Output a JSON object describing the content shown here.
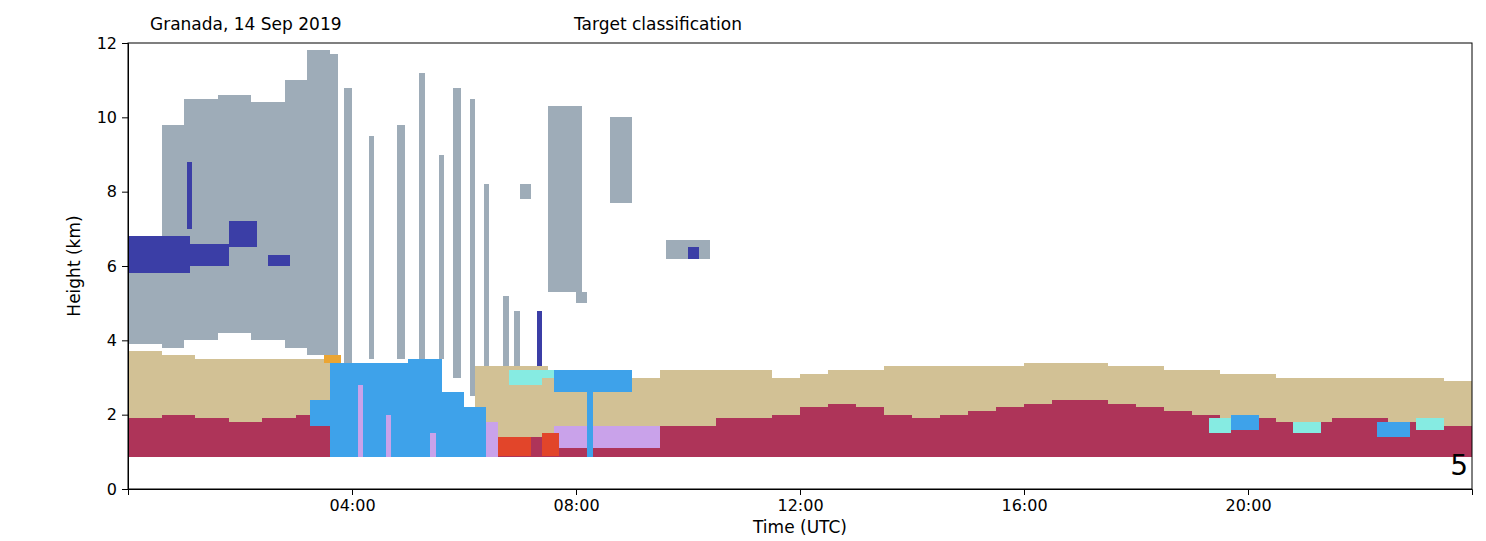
{
  "chart_data": {
    "type": "heatmap",
    "title": "Target classification",
    "subtitle": "Granada, 14 Sep 2019",
    "x_label": "Time (UTC)",
    "y_label": "Height (km)",
    "annotations": [
      "5"
    ],
    "xlim": [
      0,
      24
    ],
    "ylim": [
      0,
      12
    ],
    "xticks": [
      {
        "value": 4,
        "label": "04:00"
      },
      {
        "value": 8,
        "label": "08:00"
      },
      {
        "value": 12,
        "label": "12:00"
      },
      {
        "value": 16,
        "label": "16:00"
      },
      {
        "value": 20,
        "label": "20:00"
      }
    ],
    "yticks": [
      0,
      2,
      4,
      6,
      8,
      10,
      12
    ],
    "colors": [
      "#9eacb8",
      "#3b3ea6",
      "#d2c195",
      "#ae3459",
      "#3ea2ea",
      "#c9a2ea",
      "#86ebe2",
      "#eba532",
      "#e2452a"
    ],
    "cells": [
      [
        0,
        0.6,
        3.9,
        6.8,
        0
      ],
      [
        0.6,
        1.0,
        3.8,
        9.8,
        0
      ],
      [
        1.0,
        1.6,
        4.0,
        10.5,
        0
      ],
      [
        1.6,
        2.2,
        4.2,
        10.6,
        0
      ],
      [
        2.2,
        2.8,
        4.0,
        10.4,
        0
      ],
      [
        2.8,
        3.2,
        3.8,
        11.0,
        0
      ],
      [
        3.2,
        3.6,
        3.6,
        11.8,
        0
      ],
      [
        0,
        1.1,
        5.8,
        6.8,
        1
      ],
      [
        1.1,
        1.8,
        6.0,
        6.6,
        1
      ],
      [
        1.8,
        2.3,
        6.5,
        7.2,
        1
      ],
      [
        2.5,
        2.9,
        6.0,
        6.3,
        1
      ],
      [
        1.05,
        1.15,
        7.0,
        8.8,
        1
      ],
      [
        0,
        0.6,
        0.85,
        3.7,
        2
      ],
      [
        0.6,
        1.2,
        0.85,
        3.6,
        2
      ],
      [
        1.2,
        1.8,
        0.85,
        3.5,
        2
      ],
      [
        1.8,
        2.4,
        0.85,
        3.5,
        2
      ],
      [
        2.4,
        3.0,
        0.85,
        3.5,
        2
      ],
      [
        3.0,
        3.6,
        0.85,
        3.5,
        2
      ],
      [
        0,
        0.6,
        0.85,
        1.9,
        3
      ],
      [
        0.6,
        1.2,
        0.85,
        2.0,
        3
      ],
      [
        1.2,
        1.8,
        0.85,
        1.9,
        3
      ],
      [
        1.8,
        2.4,
        0.85,
        1.8,
        3
      ],
      [
        2.4,
        3.0,
        0.85,
        1.9,
        3
      ],
      [
        3.0,
        3.6,
        0.85,
        2.0,
        3
      ],
      [
        3.6,
        3.75,
        3.4,
        11.7,
        0
      ],
      [
        3.85,
        4.0,
        3.4,
        10.8,
        0
      ],
      [
        4.3,
        4.4,
        3.5,
        9.5,
        0
      ],
      [
        4.8,
        4.95,
        3.5,
        9.8,
        0
      ],
      [
        5.2,
        5.3,
        3.5,
        11.2,
        0
      ],
      [
        5.55,
        5.65,
        3.5,
        9.0,
        0
      ],
      [
        5.8,
        5.95,
        3.0,
        10.8,
        0
      ],
      [
        6.1,
        6.2,
        2.5,
        10.5,
        0
      ],
      [
        6.35,
        6.45,
        2.8,
        8.2,
        0
      ],
      [
        6.7,
        6.8,
        2.0,
        5.2,
        0
      ],
      [
        6.9,
        7.0,
        2.4,
        4.8,
        0
      ],
      [
        7.3,
        7.4,
        3.2,
        4.8,
        1
      ],
      [
        3.25,
        3.6,
        1.7,
        2.4,
        4
      ],
      [
        3.6,
        5.0,
        0.85,
        3.4,
        4
      ],
      [
        5.0,
        5.6,
        0.85,
        3.5,
        4
      ],
      [
        5.6,
        6.0,
        0.85,
        2.6,
        4
      ],
      [
        4.1,
        4.2,
        0.85,
        2.8,
        5
      ],
      [
        4.6,
        4.7,
        0.85,
        2.0,
        5
      ],
      [
        5.4,
        5.5,
        0.85,
        1.5,
        5
      ],
      [
        3.5,
        3.8,
        3.4,
        3.6,
        7
      ],
      [
        6.2,
        7.5,
        1.4,
        3.3,
        2
      ],
      [
        6.0,
        7.5,
        0.85,
        1.4,
        3
      ],
      [
        6.6,
        7.2,
        0.9,
        1.4,
        8
      ],
      [
        6.0,
        6.4,
        0.85,
        2.2,
        4
      ],
      [
        6.4,
        6.6,
        0.85,
        1.8,
        5
      ],
      [
        6.8,
        7.6,
        2.8,
        3.2,
        6
      ],
      [
        7.4,
        9.6,
        1.4,
        3.0,
        2
      ],
      [
        7.6,
        9.0,
        2.6,
        3.2,
        4
      ],
      [
        7.5,
        9.5,
        0.85,
        1.2,
        3
      ],
      [
        7.6,
        9.6,
        1.1,
        1.7,
        5
      ],
      [
        7.4,
        7.7,
        0.9,
        1.5,
        8
      ],
      [
        8.2,
        8.3,
        0.85,
        2.8,
        4
      ],
      [
        7.5,
        8.1,
        5.3,
        10.3,
        0
      ],
      [
        7.0,
        7.2,
        7.8,
        8.2,
        0
      ],
      [
        8.0,
        8.2,
        5.0,
        5.3,
        0
      ],
      [
        8.6,
        9.0,
        7.7,
        10.0,
        0
      ],
      [
        9.6,
        10.4,
        6.2,
        6.7,
        0
      ],
      [
        10.0,
        10.2,
        6.2,
        6.5,
        1
      ],
      [
        9.5,
        11.5,
        0.85,
        3.2,
        2
      ],
      [
        9.5,
        10.5,
        0.85,
        1.7,
        3
      ],
      [
        10.5,
        11.5,
        0.85,
        1.9,
        3
      ],
      [
        11.5,
        12.0,
        0.85,
        3.0,
        2
      ],
      [
        12.0,
        12.5,
        0.85,
        3.1,
        2
      ],
      [
        12.5,
        13.0,
        0.85,
        3.2,
        2
      ],
      [
        13.0,
        13.5,
        0.85,
        3.2,
        2
      ],
      [
        13.5,
        14.0,
        0.85,
        3.3,
        2
      ],
      [
        14.0,
        14.5,
        0.85,
        3.3,
        2
      ],
      [
        14.5,
        15.0,
        0.85,
        3.3,
        2
      ],
      [
        15.0,
        15.5,
        0.85,
        3.3,
        2
      ],
      [
        15.5,
        16.0,
        0.85,
        3.3,
        2
      ],
      [
        16.0,
        16.5,
        0.85,
        3.4,
        2
      ],
      [
        16.5,
        17.0,
        0.85,
        3.4,
        2
      ],
      [
        17.0,
        17.5,
        0.85,
        3.4,
        2
      ],
      [
        17.5,
        18.0,
        0.85,
        3.3,
        2
      ],
      [
        18.0,
        18.5,
        0.85,
        3.3,
        2
      ],
      [
        18.5,
        19.0,
        0.85,
        3.2,
        2
      ],
      [
        19.0,
        19.5,
        0.85,
        3.2,
        2
      ],
      [
        19.5,
        20.0,
        0.85,
        3.1,
        2
      ],
      [
        20.0,
        20.5,
        0.85,
        3.1,
        2
      ],
      [
        20.5,
        21.0,
        0.85,
        3.0,
        2
      ],
      [
        21.0,
        21.5,
        0.85,
        3.0,
        2
      ],
      [
        21.5,
        22.0,
        0.85,
        3.0,
        2
      ],
      [
        22.0,
        22.5,
        0.85,
        3.0,
        2
      ],
      [
        22.5,
        23.0,
        0.85,
        3.0,
        2
      ],
      [
        23.0,
        23.5,
        0.85,
        3.0,
        2
      ],
      [
        23.5,
        24.0,
        0.85,
        2.9,
        2
      ],
      [
        11.5,
        12.0,
        0.85,
        2.0,
        3
      ],
      [
        12.0,
        12.5,
        0.85,
        2.2,
        3
      ],
      [
        12.5,
        13.0,
        0.85,
        2.3,
        3
      ],
      [
        13.0,
        13.5,
        0.85,
        2.2,
        3
      ],
      [
        13.5,
        14.0,
        0.85,
        2.0,
        3
      ],
      [
        14.0,
        14.5,
        0.85,
        1.9,
        3
      ],
      [
        14.5,
        15.0,
        0.85,
        2.0,
        3
      ],
      [
        15.0,
        15.5,
        0.85,
        2.1,
        3
      ],
      [
        15.5,
        16.0,
        0.85,
        2.2,
        3
      ],
      [
        16.0,
        16.5,
        0.85,
        2.3,
        3
      ],
      [
        16.5,
        17.0,
        0.85,
        2.4,
        3
      ],
      [
        17.0,
        17.5,
        0.85,
        2.4,
        3
      ],
      [
        17.5,
        18.0,
        0.85,
        2.3,
        3
      ],
      [
        18.0,
        18.5,
        0.85,
        2.2,
        3
      ],
      [
        18.5,
        19.0,
        0.85,
        2.1,
        3
      ],
      [
        19.0,
        19.5,
        0.85,
        2.0,
        3
      ],
      [
        19.5,
        20.0,
        0.85,
        1.9,
        3
      ],
      [
        20.0,
        20.5,
        0.85,
        1.9,
        3
      ],
      [
        20.5,
        21.0,
        0.85,
        1.8,
        3
      ],
      [
        21.0,
        21.5,
        0.85,
        1.8,
        3
      ],
      [
        21.5,
        22.0,
        0.85,
        1.9,
        3
      ],
      [
        22.0,
        22.5,
        0.85,
        1.9,
        3
      ],
      [
        22.5,
        23.0,
        0.85,
        1.8,
        3
      ],
      [
        23.0,
        23.5,
        0.85,
        1.8,
        3
      ],
      [
        23.5,
        24.0,
        0.85,
        1.7,
        3
      ],
      [
        19.3,
        19.7,
        1.5,
        1.9,
        6
      ],
      [
        19.7,
        20.2,
        1.6,
        2.0,
        4
      ],
      [
        20.8,
        21.3,
        1.5,
        1.8,
        6
      ],
      [
        22.3,
        22.9,
        1.4,
        1.8,
        4
      ],
      [
        23.0,
        23.5,
        1.6,
        1.9,
        6
      ]
    ]
  }
}
